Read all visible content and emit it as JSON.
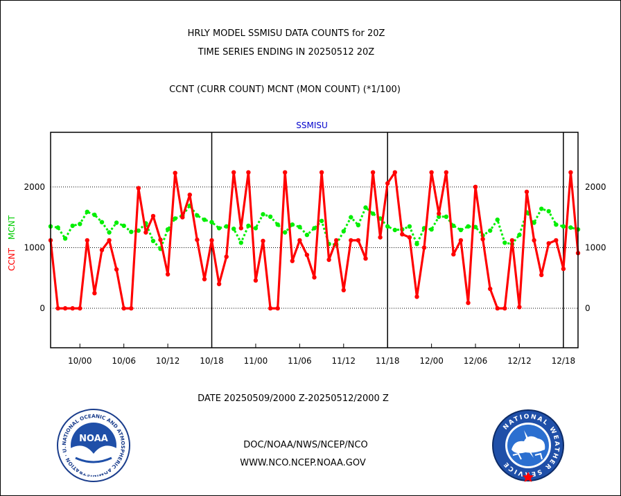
{
  "header": {
    "title_line1": "HRLY MODEL SSMISU DATA COUNTS for 20Z",
    "title_line2": "TIME SERIES ENDING IN 20250512 20Z",
    "title_line3": "CCNT (CURR COUNT) MCNT (MON COUNT) (*1/100)"
  },
  "footer": {
    "date_range": "DATE 20250509/2000 Z-20250512/2000 Z",
    "org_path": "DOC/NOAA/NWS/NCEP/NCO",
    "website": "WWW.NCO.NCEP.NOAA.GOV",
    "noaa_logo_text": "NOAA",
    "noaa_ring_text": "NATIONAL OCEANIC AND ATMOSPHERIC ADMINISTRATION · U.S. DEPARTMENT OF COMMERCE ·",
    "nws_ring_text": "NATIONAL WEATHER SERVICE"
  },
  "colors": {
    "ccnt": "#ff0000",
    "mcnt": "#00ee00",
    "title": "#000000",
    "subtitle": "#0000cc",
    "date_range": "#ff0000"
  },
  "chart_data": {
    "type": "line",
    "subtitle": "SSMISU",
    "ylabel_parts": [
      "CCNT",
      "MCNT"
    ],
    "y_ticks": [
      0,
      1000,
      2000
    ],
    "ylim": [
      -650,
      2900
    ],
    "xlim": [
      0,
      72
    ],
    "x_ticks": [
      {
        "x": 4,
        "label": "10/00"
      },
      {
        "x": 10,
        "label": "10/06"
      },
      {
        "x": 16,
        "label": "10/12"
      },
      {
        "x": 22,
        "label": "10/18"
      },
      {
        "x": 28,
        "label": "11/00"
      },
      {
        "x": 34,
        "label": "11/06"
      },
      {
        "x": 40,
        "label": "11/12"
      },
      {
        "x": 46,
        "label": "11/18"
      },
      {
        "x": 52,
        "label": "12/00"
      },
      {
        "x": 58,
        "label": "12/06"
      },
      {
        "x": 64,
        "label": "12/12"
      },
      {
        "x": 70,
        "label": "12/18"
      }
    ],
    "day_boundaries": [
      22,
      46,
      70
    ],
    "grid": "dotted horizontal at y ticks",
    "series": [
      {
        "name": "CCNT",
        "values": [
          1120,
          0,
          0,
          0,
          0,
          1120,
          250,
          960,
          1120,
          640,
          0,
          0,
          1980,
          1250,
          1520,
          1130,
          560,
          2230,
          1500,
          1870,
          1130,
          480,
          1120,
          400,
          850,
          2240,
          1320,
          2240,
          460,
          1110,
          0,
          0,
          2240,
          780,
          1120,
          880,
          510,
          2240,
          800,
          1120,
          300,
          1120,
          1120,
          820,
          2240,
          1170,
          2060,
          2240,
          1220,
          1170,
          190,
          1000,
          2240,
          1560,
          2240,
          890,
          1120,
          90,
          2000,
          1140,
          320,
          0,
          0,
          1120,
          20,
          1920,
          1120,
          550,
          1070,
          1120,
          650,
          2240,
          910
        ]
      },
      {
        "name": "MCNT",
        "values": [
          1350,
          1330,
          1150,
          1360,
          1390,
          1590,
          1540,
          1420,
          1250,
          1410,
          1360,
          1260,
          1280,
          1400,
          1110,
          980,
          1300,
          1480,
          1530,
          1690,
          1530,
          1460,
          1420,
          1320,
          1350,
          1310,
          1080,
          1360,
          1320,
          1550,
          1510,
          1380,
          1250,
          1380,
          1340,
          1210,
          1320,
          1440,
          1060,
          1050,
          1270,
          1500,
          1370,
          1660,
          1560,
          1480,
          1350,
          1290,
          1300,
          1350,
          1060,
          1320,
          1300,
          1510,
          1510,
          1360,
          1290,
          1350,
          1340,
          1200,
          1280,
          1460,
          1080,
          1060,
          1210,
          1580,
          1410,
          1640,
          1600,
          1380,
          1350,
          1330,
          1300
        ]
      }
    ]
  }
}
